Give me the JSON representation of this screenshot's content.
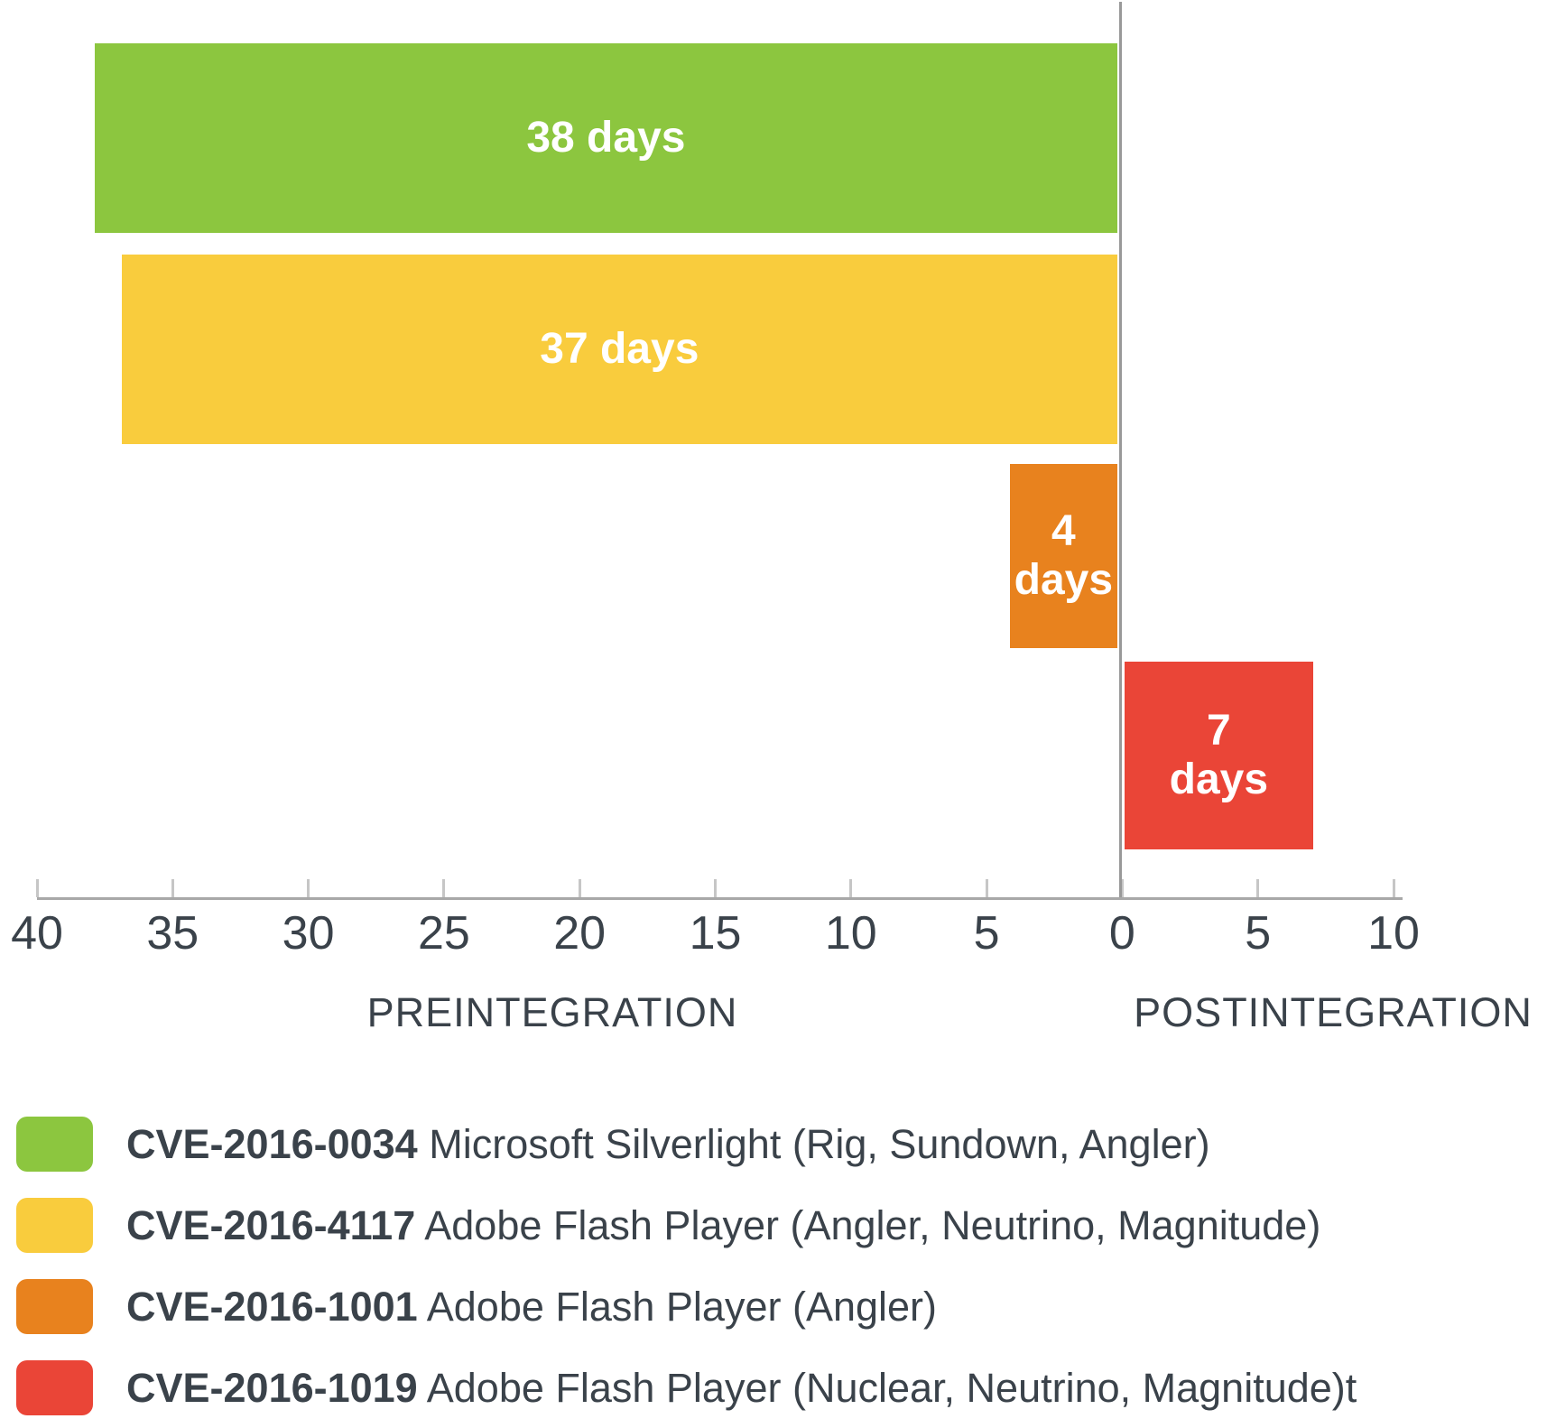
{
  "chart_data": {
    "type": "bar",
    "orientation": "horizontal-diverging",
    "unit": "days",
    "bars": [
      {
        "cve": "CVE-2016-0034",
        "days": 38,
        "phase": "preintegration",
        "label_lines": [
          "38 days"
        ],
        "color": "#8cc63f"
      },
      {
        "cve": "CVE-2016-4117",
        "days": 37,
        "phase": "preintegration",
        "label_lines": [
          "37 days"
        ],
        "color": "#f9cc3d"
      },
      {
        "cve": "CVE-2016-1001",
        "days": 4,
        "phase": "preintegration",
        "label_lines": [
          "4",
          "days"
        ],
        "color": "#e8821e"
      },
      {
        "cve": "CVE-2016-1019",
        "days": 7,
        "phase": "postintegration",
        "label_lines": [
          "7",
          "days"
        ],
        "color": "#ea4537"
      }
    ],
    "x_axis": {
      "ticks": [
        "40",
        "35",
        "30",
        "25",
        "20",
        "15",
        "10",
        "5",
        "0",
        "5",
        "10"
      ],
      "left_label": "PREINTEGRATION",
      "right_label": "POSTINTEGRATION",
      "range_left_days": 40,
      "range_right_days": 10,
      "grid": false
    },
    "legend": [
      {
        "id": "CVE-2016-0034",
        "description": "Microsoft Silverlight (Rig, Sundown, Angler)",
        "color": "#8cc63f"
      },
      {
        "id": "CVE-2016-4117",
        "description": "Adobe Flash Player (Angler, Neutrino, Magnitude)",
        "color": "#f9cc3d"
      },
      {
        "id": "CVE-2016-1001",
        "description": "Adobe Flash Player (Angler)",
        "color": "#e8821e"
      },
      {
        "id": "CVE-2016-1019",
        "description": "Adobe Flash Player (Nuclear, Neutrino, Magnitude)t",
        "color": "#ea4537"
      }
    ],
    "colors": {
      "axis_line": "#a8a8a8",
      "tick_mark": "#c6c6c6",
      "zero_line": "#999999",
      "axis_text": "#3a424a",
      "bar_label_text": "#ffffff"
    }
  }
}
